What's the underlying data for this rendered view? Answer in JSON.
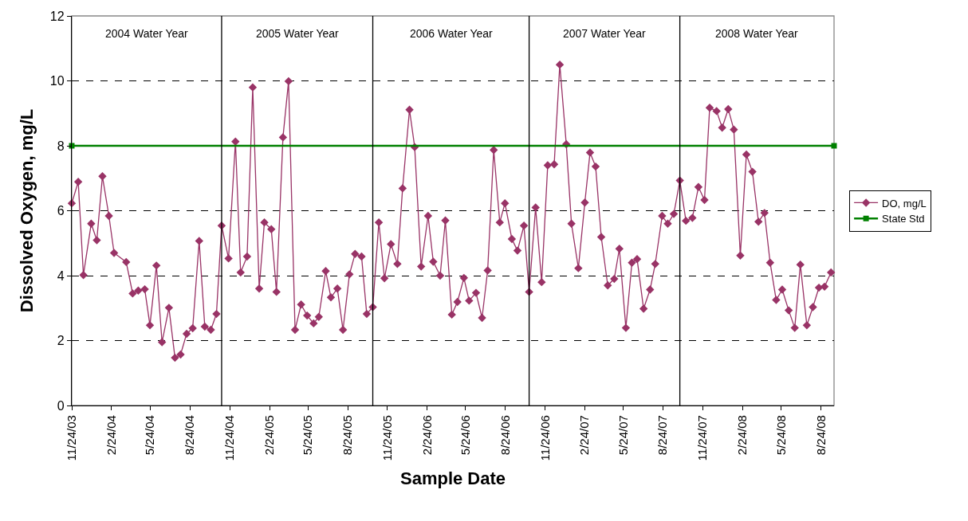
{
  "chart_data": {
    "type": "line",
    "xlabel": "Sample Date",
    "ylabel": "Dissolved Oxygen, mg/L",
    "annotations": [
      "2004 Water Year",
      "2005 Water Year",
      "2006 Water Year",
      "2007 Water Year",
      "2008 Water Year"
    ],
    "x": [
      "2003-11-24",
      "2003-12-09",
      "2003-12-21",
      "2004-01-08",
      "2004-01-21",
      "2004-02-03",
      "2004-02-18",
      "2004-03-01",
      "2004-03-29",
      "2004-04-13",
      "2004-04-26",
      "2004-05-11",
      "2004-05-23",
      "2004-06-07",
      "2004-06-20",
      "2004-07-06",
      "2004-07-20",
      "2004-08-02",
      "2004-08-16",
      "2004-08-30",
      "2004-09-14",
      "2004-09-27",
      "2004-10-11",
      "2004-10-24",
      "2004-11-05",
      "2004-11-21",
      "2004-12-07",
      "2004-12-19",
      "2005-01-03",
      "2005-01-16",
      "2005-01-31",
      "2005-02-12",
      "2005-02-28",
      "2005-03-12",
      "2005-03-27",
      "2005-04-09",
      "2005-04-24",
      "2005-05-08",
      "2005-05-22",
      "2005-06-06",
      "2005-06-18",
      "2005-07-04",
      "2005-07-16",
      "2005-07-31",
      "2005-08-13",
      "2005-08-28",
      "2005-09-10",
      "2005-09-25",
      "2005-10-07",
      "2005-10-21",
      "2005-11-04",
      "2005-11-17",
      "2005-12-02",
      "2005-12-17",
      "2005-12-29",
      "2006-01-14",
      "2006-01-26",
      "2006-02-10",
      "2006-02-26",
      "2006-03-10",
      "2006-03-26",
      "2006-04-07",
      "2006-04-22",
      "2006-05-05",
      "2006-05-20",
      "2006-06-01",
      "2006-06-17",
      "2006-07-01",
      "2006-07-14",
      "2006-07-28",
      "2006-08-11",
      "2006-08-23",
      "2006-09-08",
      "2006-09-21",
      "2006-10-06",
      "2006-10-18",
      "2006-11-02",
      "2006-11-16",
      "2006-11-30",
      "2006-12-15",
      "2006-12-28",
      "2007-01-12",
      "2007-01-24",
      "2007-02-09",
      "2007-02-24",
      "2007-03-08",
      "2007-03-21",
      "2007-04-03",
      "2007-04-18",
      "2007-05-03",
      "2007-05-15",
      "2007-05-30",
      "2007-06-13",
      "2007-06-25",
      "2007-07-10",
      "2007-07-25",
      "2007-08-06",
      "2007-08-22",
      "2007-09-04",
      "2007-09-18",
      "2007-10-02",
      "2007-10-16",
      "2007-10-31",
      "2007-11-14",
      "2007-11-28",
      "2007-12-10",
      "2007-12-26",
      "2008-01-08",
      "2008-01-22",
      "2008-02-04",
      "2008-02-19",
      "2008-03-04",
      "2008-03-18",
      "2008-04-01",
      "2008-04-15",
      "2008-04-28",
      "2008-05-12",
      "2008-05-26",
      "2008-06-10",
      "2008-06-24",
      "2008-07-07",
      "2008-07-22",
      "2008-08-05",
      "2008-08-19",
      "2008-09-01",
      "2008-09-16"
    ],
    "series": [
      {
        "name": "DO, mg/L",
        "color": "#993366",
        "marker": "diamond",
        "values": [
          6.23,
          6.89,
          4.02,
          5.6,
          5.09,
          7.06,
          5.84,
          4.7,
          4.42,
          3.45,
          3.54,
          3.58,
          2.47,
          4.31,
          1.95,
          3.01,
          1.47,
          1.57,
          2.21,
          2.38,
          5.07,
          2.43,
          2.33,
          2.82,
          5.54,
          4.53,
          8.13,
          4.1,
          4.59,
          9.8,
          3.6,
          5.64,
          5.43,
          3.5,
          8.26,
          9.99,
          2.33,
          3.11,
          2.77,
          2.53,
          2.73,
          4.14,
          3.33,
          3.6,
          2.33,
          4.04,
          4.67,
          4.59,
          2.82,
          3.03,
          5.64,
          3.92,
          4.97,
          4.36,
          6.69,
          9.11,
          7.96,
          4.28,
          5.84,
          4.43,
          4.0,
          5.7,
          2.8,
          3.19,
          3.93,
          3.23,
          3.47,
          2.7,
          4.16,
          7.87,
          5.64,
          6.23,
          5.13,
          4.77,
          5.54,
          3.5,
          6.1,
          3.8,
          7.4,
          7.43,
          10.5,
          8.05,
          5.6,
          4.23,
          6.25,
          7.79,
          7.36,
          5.19,
          3.7,
          3.9,
          4.83,
          2.39,
          4.4,
          4.51,
          2.98,
          3.57,
          4.36,
          5.84,
          5.6,
          5.9,
          6.93,
          5.69,
          5.78,
          6.73,
          6.33,
          9.17,
          9.07,
          8.56,
          9.13,
          8.5,
          4.62,
          7.73,
          7.2,
          5.66,
          5.93,
          4.4,
          3.25,
          3.57,
          2.93,
          2.39,
          4.34,
          2.47,
          3.03,
          3.63,
          3.66,
          4.1
        ]
      },
      {
        "name": "State Std",
        "color": "#008000",
        "marker": "square",
        "x": [
          "2003-11-24",
          "2008-09-23"
        ],
        "values": [
          8,
          8
        ]
      }
    ],
    "xlim": [
      "2003-11-24",
      "2008-09-23"
    ],
    "xticks": [
      {
        "value": "2003-11-24",
        "label": "11/24/03"
      },
      {
        "value": "2004-02-24",
        "label": "2/24/04"
      },
      {
        "value": "2004-05-24",
        "label": "5/24/04"
      },
      {
        "value": "2004-08-24",
        "label": "8/24/04"
      },
      {
        "value": "2004-11-24",
        "label": "11/24/04"
      },
      {
        "value": "2005-02-24",
        "label": "2/24/05"
      },
      {
        "value": "2005-05-24",
        "label": "5/24/05"
      },
      {
        "value": "2005-08-24",
        "label": "8/24/05"
      },
      {
        "value": "2005-11-24",
        "label": "11/24/05"
      },
      {
        "value": "2006-02-24",
        "label": "2/24/06"
      },
      {
        "value": "2006-05-24",
        "label": "5/24/06"
      },
      {
        "value": "2006-08-24",
        "label": "8/24/06"
      },
      {
        "value": "2006-11-24",
        "label": "11/24/06"
      },
      {
        "value": "2007-02-24",
        "label": "2/24/07"
      },
      {
        "value": "2007-05-24",
        "label": "5/24/07"
      },
      {
        "value": "2007-08-24",
        "label": "8/24/07"
      },
      {
        "value": "2007-11-24",
        "label": "11/24/07"
      },
      {
        "value": "2008-02-24",
        "label": "2/24/08"
      },
      {
        "value": "2008-05-24",
        "label": "5/24/08"
      },
      {
        "value": "2008-08-24",
        "label": "8/24/08"
      }
    ],
    "ylim": [
      0,
      12
    ],
    "yticks": [
      0,
      2,
      4,
      6,
      8,
      10,
      12
    ],
    "ref_lines": [
      {
        "axis": "x",
        "value": "2004-11-05",
        "color": "#000000"
      },
      {
        "axis": "x",
        "value": "2005-10-21",
        "color": "#000000"
      },
      {
        "axis": "x",
        "value": "2006-10-18",
        "color": "#000000"
      },
      {
        "axis": "x",
        "value": "2007-10-02",
        "color": "#000000"
      }
    ],
    "grid": "y",
    "legend": "right",
    "line_style": "solid"
  }
}
